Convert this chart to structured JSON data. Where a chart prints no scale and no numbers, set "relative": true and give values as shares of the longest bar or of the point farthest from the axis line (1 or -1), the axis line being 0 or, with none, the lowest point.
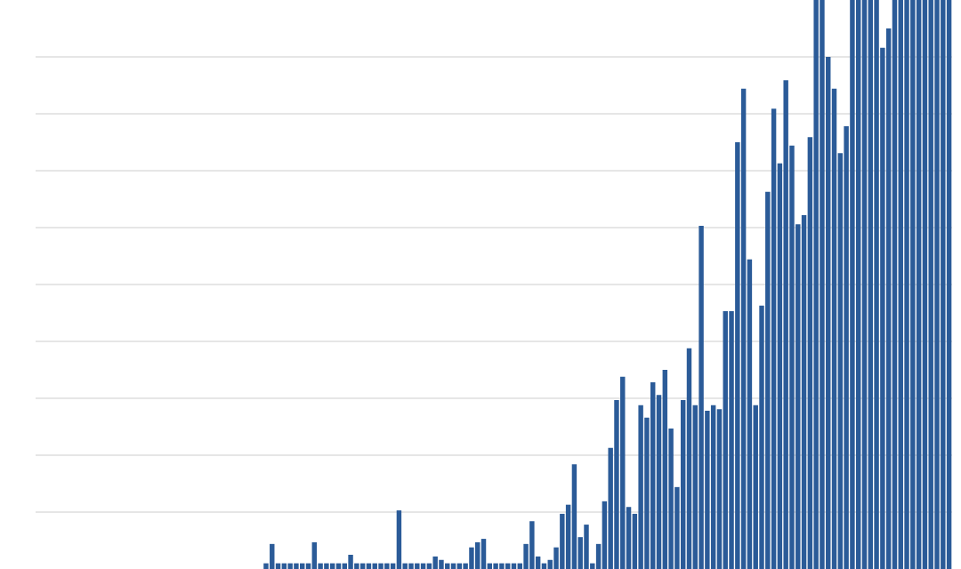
{
  "chart_data": {
    "type": "bar",
    "relative": true,
    "grid": "y",
    "color": "#2b5b98",
    "categories": [
      null,
      null,
      null,
      null,
      null,
      null,
      null,
      null,
      null,
      null,
      null,
      null,
      null,
      null,
      null,
      null,
      null,
      null,
      null,
      null,
      null,
      null,
      null,
      null,
      null,
      null,
      null,
      null,
      null,
      null,
      null,
      null,
      null,
      null,
      null,
      null,
      null,
      null,
      null,
      null,
      null,
      null,
      null,
      null,
      null,
      null,
      null,
      null,
      null,
      null,
      null,
      null,
      null,
      null,
      null,
      null,
      null,
      null,
      null,
      null,
      null,
      null,
      null,
      null,
      null,
      null,
      null,
      null,
      null,
      null,
      null,
      null,
      null,
      null,
      null,
      null,
      null,
      null,
      null,
      null,
      null,
      null,
      null,
      null,
      null,
      null,
      null,
      null,
      null,
      null,
      null,
      null,
      null,
      null,
      null,
      null,
      null,
      null,
      null,
      null,
      null,
      null,
      null,
      null,
      null,
      null,
      null,
      null,
      null,
      null,
      null,
      null,
      null,
      null
    ],
    "values": [
      0.01,
      0.044,
      0.01,
      0.01,
      0.01,
      0.01,
      0.01,
      0.01,
      0.047,
      0.01,
      0.01,
      0.01,
      0.01,
      0.01,
      0.025,
      0.01,
      0.01,
      0.01,
      0.01,
      0.01,
      0.01,
      0.01,
      0.103,
      0.01,
      0.01,
      0.01,
      0.01,
      0.01,
      0.022,
      0.016,
      0.01,
      0.01,
      0.01,
      0.01,
      0.038,
      0.047,
      0.053,
      0.01,
      0.01,
      0.01,
      0.01,
      0.01,
      0.01,
      0.044,
      0.084,
      0.022,
      0.01,
      0.016,
      0.038,
      0.097,
      0.113,
      0.184,
      0.056,
      0.078,
      0.01,
      0.044,
      0.119,
      0.213,
      0.297,
      0.338,
      0.109,
      0.097,
      0.288,
      0.266,
      0.328,
      0.306,
      0.35,
      0.247,
      0.144,
      0.297,
      0.388,
      0.288,
      0.603,
      0.278,
      0.288,
      0.281,
      0.453,
      0.453,
      0.75,
      0.844,
      0.544,
      0.288,
      0.463,
      0.663,
      0.809,
      0.713,
      0.859,
      0.744,
      0.606,
      0.622,
      0.759,
      1,
      1,
      0.9,
      0.844,
      0.731,
      0.778,
      1,
      1,
      1,
      1,
      1,
      0.916,
      0.95,
      1,
      1,
      1,
      1,
      1,
      1,
      1,
      1,
      1,
      1
    ]
  }
}
